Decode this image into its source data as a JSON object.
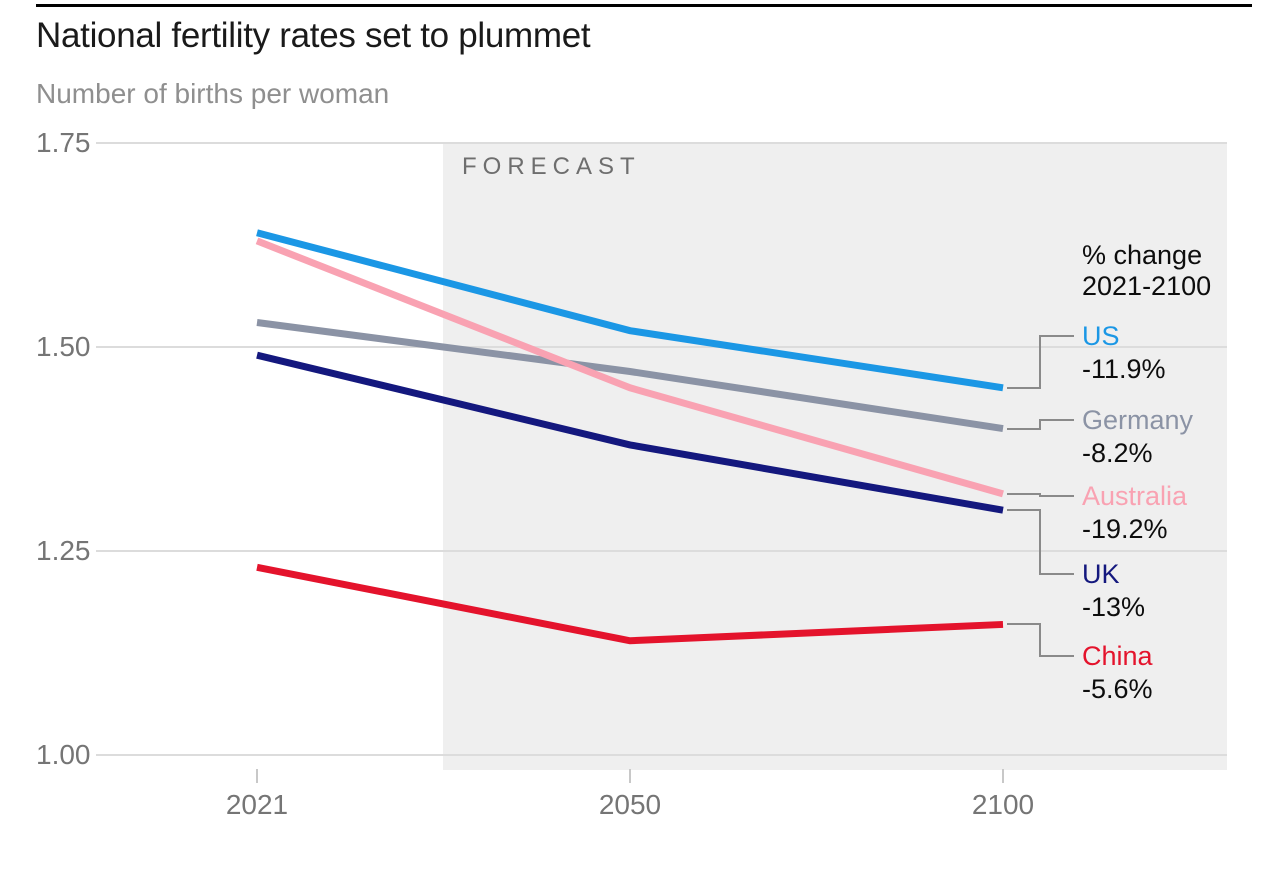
{
  "header": {
    "title": "National fertility rates set to plummet",
    "subtitle": "Number of births per woman"
  },
  "plot": {
    "forecast_label": "FORECAST"
  },
  "legend_header": {
    "line1": "% change",
    "line2": "2021-2100"
  },
  "colors": {
    "grid": "#dcdcdc",
    "tick": "#c8c8c8",
    "leader": "#8a8a8a",
    "band": "#efefef",
    "title_text": "#1a1a1a",
    "subtitle_text": "#8f8f8f",
    "axis_text": "#757575",
    "value_text": "#0d0d0d"
  },
  "chart_data": {
    "type": "line",
    "title": "National fertility rates set to plummet",
    "subtitle": "Number of births per woman",
    "ylabel": "Number of births per woman",
    "xlabel": "",
    "x": [
      2021,
      2050,
      2100
    ],
    "x_tick_labels": [
      "2021",
      "2050",
      "2100"
    ],
    "y_ticks": [
      1.75,
      1.5,
      1.25,
      1.0
    ],
    "y_tick_labels": [
      "1.75",
      "1.50",
      "1.25",
      "1.00"
    ],
    "ylim": [
      1.0,
      1.75
    ],
    "grid": "horizontal",
    "legend_position": "right",
    "forecast_label": "FORECAST",
    "forecast_region_starts_between": [
      2021,
      2050
    ],
    "legend_note": "% change 2021-2100",
    "series": [
      {
        "name": "US",
        "color": "#1b97e5",
        "values": [
          1.64,
          1.52,
          1.45
        ],
        "pct_change": "-11.9%"
      },
      {
        "name": "Germany",
        "color": "#8b93a5",
        "values": [
          1.53,
          1.47,
          1.4
        ],
        "pct_change": "-8.2%"
      },
      {
        "name": "Australia",
        "color": "#f9a2b2",
        "values": [
          1.63,
          1.45,
          1.32
        ],
        "pct_change": "-19.2%"
      },
      {
        "name": "UK",
        "color": "#14187e",
        "values": [
          1.49,
          1.38,
          1.3
        ],
        "pct_change": "-13%"
      },
      {
        "name": "China",
        "color": "#e4132c",
        "values": [
          1.23,
          1.14,
          1.16
        ],
        "pct_change": "-5.6%"
      }
    ]
  }
}
